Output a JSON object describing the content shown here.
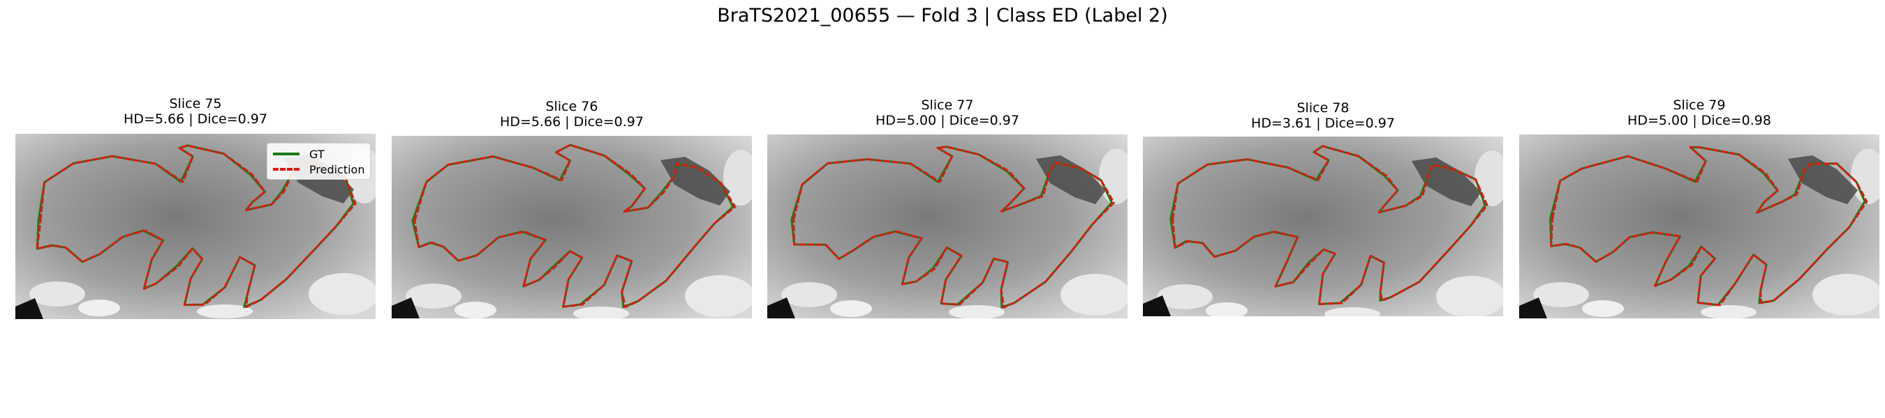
{
  "figure": {
    "title": "BraTS2021_00655 — Fold 3 | Class ED (Label 2)"
  },
  "colors": {
    "gt": "#1a7a1a",
    "prediction": "#dd1a10",
    "background_scan": "#9a9a9a"
  },
  "legend": {
    "placement": "lower-right of first panel",
    "gt_label": "GT",
    "prediction_label": "Prediction"
  },
  "panels": [
    {
      "slice_label": "Slice 75",
      "metrics_label": "HD=5.66 | Dice=0.97"
    },
    {
      "slice_label": "Slice 76",
      "metrics_label": "HD=5.66 | Dice=0.97"
    },
    {
      "slice_label": "Slice 77",
      "metrics_label": "HD=5.00 | Dice=0.97"
    },
    {
      "slice_label": "Slice 78",
      "metrics_label": "HD=3.61 | Dice=0.97"
    },
    {
      "slice_label": "Slice 79",
      "metrics_label": "HD=5.00 | Dice=0.98"
    }
  ]
}
